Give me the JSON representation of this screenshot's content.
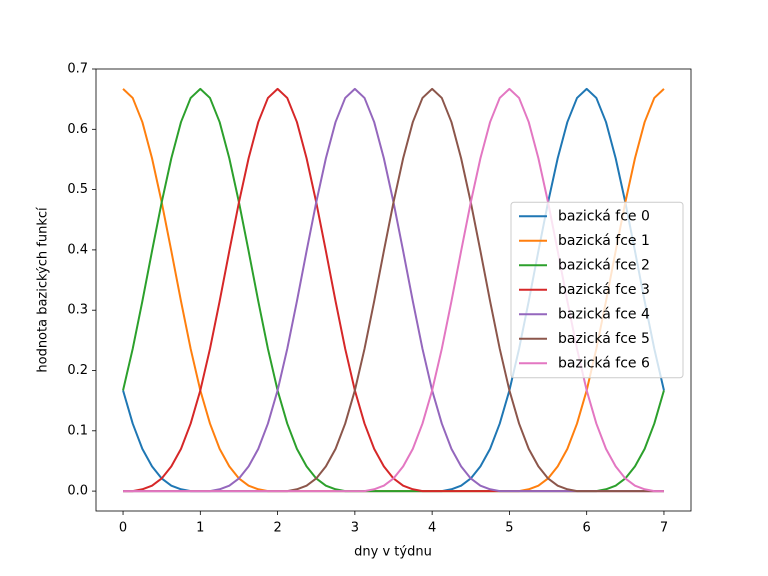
{
  "chart_data": {
    "type": "line",
    "xlabel": "dny v týdnu",
    "ylabel": "hodnota bazických funkcí",
    "xlim": [
      -0.35,
      7.35
    ],
    "ylim": [
      -0.033,
      0.7
    ],
    "xticks": [
      0,
      1,
      2,
      3,
      4,
      5,
      6,
      7
    ],
    "yticks": [
      {
        "value": 0,
        "label": "0.0"
      },
      0.1,
      0.2,
      0.3,
      0.4,
      0.5,
      0.6,
      0.7
    ],
    "legend": "center right",
    "x": [
      0,
      0.125,
      0.25,
      0.375,
      0.5,
      0.625,
      0.75,
      0.875,
      1,
      1.125,
      1.25,
      1.375,
      1.5,
      1.625,
      1.75,
      1.875,
      2,
      2.125,
      2.25,
      2.375,
      2.5,
      2.625,
      2.75,
      2.875,
      3,
      3.125,
      3.25,
      3.375,
      3.5,
      3.625,
      3.75,
      3.875,
      4,
      4.125,
      4.25,
      4.375,
      4.5,
      4.625,
      4.75,
      4.875,
      5,
      5.125,
      5.25,
      5.375,
      5.5,
      5.625,
      5.75,
      5.875,
      6,
      6.125,
      6.25,
      6.375,
      6.5,
      6.625,
      6.75,
      6.875,
      7
    ],
    "series": [
      {
        "name": "bazická fce 0",
        "color": "#1f77b4",
        "values": [
          0.167,
          0.112,
          0.07,
          0.041,
          0.021,
          0.009,
          0.003,
          0,
          0,
          0,
          0,
          0,
          0,
          0,
          0,
          0,
          0,
          0,
          0,
          0,
          0,
          0,
          0,
          0,
          0,
          0,
          0,
          0,
          0,
          0,
          0,
          0,
          0,
          0,
          0.003,
          0.009,
          0.021,
          0.041,
          0.07,
          0.112,
          0.167,
          0.236,
          0.315,
          0.398,
          0.479,
          0.552,
          0.612,
          0.652,
          0.667,
          0.652,
          0.612,
          0.552,
          0.479,
          0.398,
          0.315,
          0.236,
          0.167
        ]
      },
      {
        "name": "bazická fce 1",
        "color": "#ff7f0e",
        "values": [
          0.667,
          0.652,
          0.612,
          0.552,
          0.479,
          0.398,
          0.315,
          0.236,
          0.167,
          0.112,
          0.07,
          0.041,
          0.021,
          0.009,
          0.003,
          0,
          0,
          0,
          0,
          0,
          0,
          0,
          0,
          0,
          0,
          0,
          0,
          0,
          0,
          0,
          0,
          0,
          0,
          0,
          0,
          0,
          0,
          0,
          0,
          0,
          0,
          0,
          0.003,
          0.009,
          0.021,
          0.041,
          0.07,
          0.112,
          0.167,
          0.236,
          0.315,
          0.398,
          0.479,
          0.552,
          0.612,
          0.652,
          0.667
        ]
      },
      {
        "name": "bazická fce 2",
        "color": "#2ca02c",
        "values": [
          0.167,
          0.236,
          0.315,
          0.398,
          0.479,
          0.552,
          0.612,
          0.652,
          0.667,
          0.652,
          0.612,
          0.552,
          0.479,
          0.398,
          0.315,
          0.236,
          0.167,
          0.112,
          0.07,
          0.041,
          0.021,
          0.009,
          0.003,
          0,
          0,
          0,
          0,
          0,
          0,
          0,
          0,
          0,
          0,
          0,
          0,
          0,
          0,
          0,
          0,
          0,
          0,
          0,
          0,
          0,
          0,
          0,
          0,
          0,
          0,
          0,
          0.003,
          0.009,
          0.021,
          0.041,
          0.07,
          0.112,
          0.167
        ]
      },
      {
        "name": "bazická fce 3",
        "color": "#d62728",
        "values": [
          0,
          0,
          0.003,
          0.009,
          0.021,
          0.041,
          0.07,
          0.112,
          0.167,
          0.236,
          0.315,
          0.398,
          0.479,
          0.552,
          0.612,
          0.652,
          0.667,
          0.652,
          0.612,
          0.552,
          0.479,
          0.398,
          0.315,
          0.236,
          0.167,
          0.112,
          0.07,
          0.041,
          0.021,
          0.009,
          0.003,
          0,
          0,
          0,
          0,
          0,
          0,
          0,
          0,
          0,
          0,
          0,
          0,
          0,
          0,
          0,
          0,
          0,
          0,
          0,
          0,
          0,
          0,
          0,
          0,
          0,
          0
        ]
      },
      {
        "name": "bazická fce 4",
        "color": "#9467bd",
        "values": [
          0,
          0,
          0,
          0,
          0,
          0,
          0,
          0,
          0,
          0,
          0.003,
          0.009,
          0.021,
          0.041,
          0.07,
          0.112,
          0.167,
          0.236,
          0.315,
          0.398,
          0.479,
          0.552,
          0.612,
          0.652,
          0.667,
          0.652,
          0.612,
          0.552,
          0.479,
          0.398,
          0.315,
          0.236,
          0.167,
          0.112,
          0.07,
          0.041,
          0.021,
          0.009,
          0.003,
          0,
          0,
          0,
          0,
          0,
          0,
          0,
          0,
          0,
          0,
          0,
          0,
          0,
          0,
          0,
          0,
          0,
          0
        ]
      },
      {
        "name": "bazická fce 5",
        "color": "#8c564b",
        "values": [
          0,
          0,
          0,
          0,
          0,
          0,
          0,
          0,
          0,
          0,
          0,
          0,
          0,
          0,
          0,
          0,
          0,
          0,
          0.003,
          0.009,
          0.021,
          0.041,
          0.07,
          0.112,
          0.167,
          0.236,
          0.315,
          0.398,
          0.479,
          0.552,
          0.612,
          0.652,
          0.667,
          0.652,
          0.612,
          0.552,
          0.479,
          0.398,
          0.315,
          0.236,
          0.167,
          0.112,
          0.07,
          0.041,
          0.021,
          0.009,
          0.003,
          0,
          0,
          0,
          0,
          0,
          0,
          0,
          0,
          0,
          0
        ]
      },
      {
        "name": "bazická fce 6",
        "color": "#e377c2",
        "values": [
          0,
          0,
          0,
          0,
          0,
          0,
          0,
          0,
          0,
          0,
          0,
          0,
          0,
          0,
          0,
          0,
          0,
          0,
          0,
          0,
          0,
          0,
          0,
          0,
          0,
          0,
          0.003,
          0.009,
          0.021,
          0.041,
          0.07,
          0.112,
          0.167,
          0.236,
          0.315,
          0.398,
          0.479,
          0.552,
          0.612,
          0.652,
          0.667,
          0.652,
          0.612,
          0.552,
          0.479,
          0.398,
          0.315,
          0.236,
          0.167,
          0.112,
          0.07,
          0.041,
          0.021,
          0.009,
          0.003,
          0,
          0
        ]
      }
    ]
  }
}
